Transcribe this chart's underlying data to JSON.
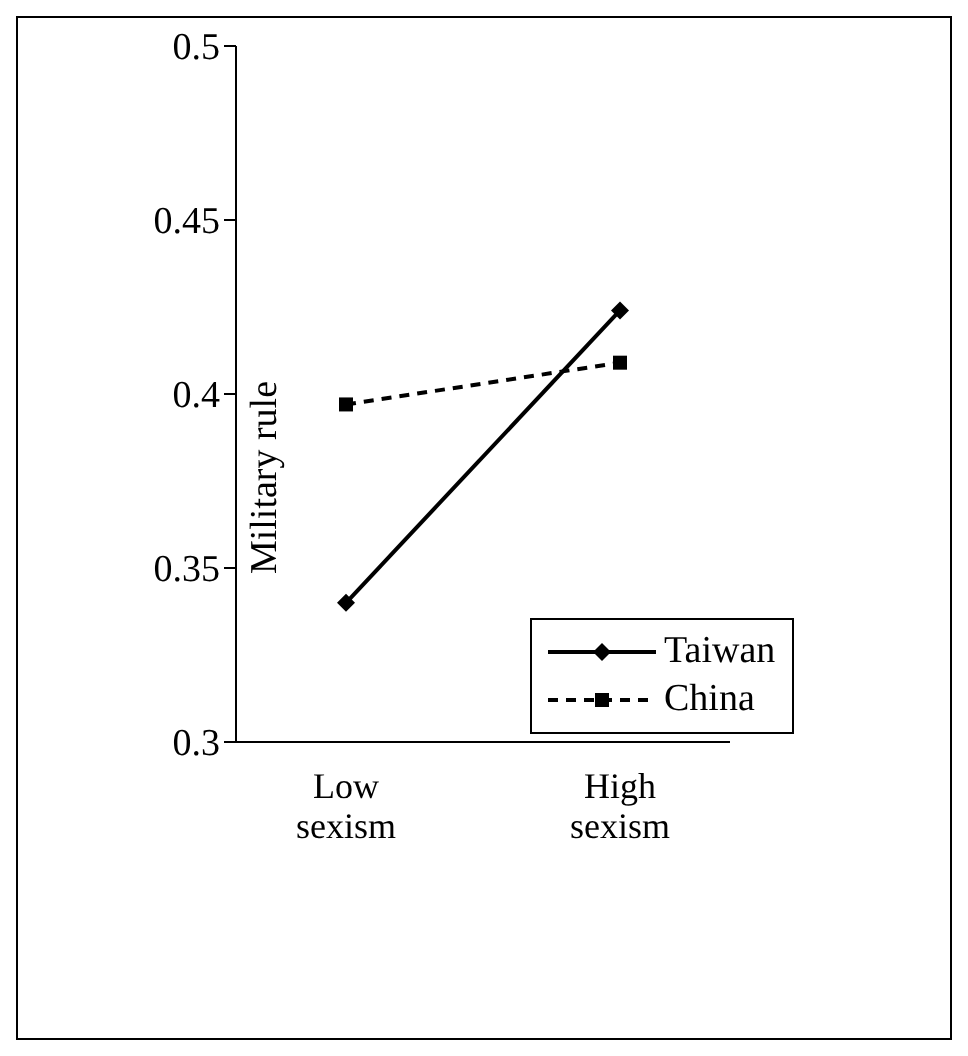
{
  "chart_data": {
    "type": "line",
    "ylabel": "Military rule",
    "categories": [
      "Low sexism",
      "High sexism"
    ],
    "series": [
      {
        "name": "Taiwan",
        "color": "#000000",
        "values": [
          0.34,
          0.424
        ],
        "marker": "diamond",
        "line_style": "solid"
      },
      {
        "name": "China",
        "color": "#000000",
        "values": [
          0.397,
          0.409
        ],
        "marker": "square",
        "line_style": "dashed"
      }
    ],
    "ylim": [
      0.3,
      0.5
    ],
    "yticks": [
      0.3,
      0.35,
      0.4,
      0.45,
      0.5
    ],
    "grid": false,
    "legend": "bottom right"
  }
}
